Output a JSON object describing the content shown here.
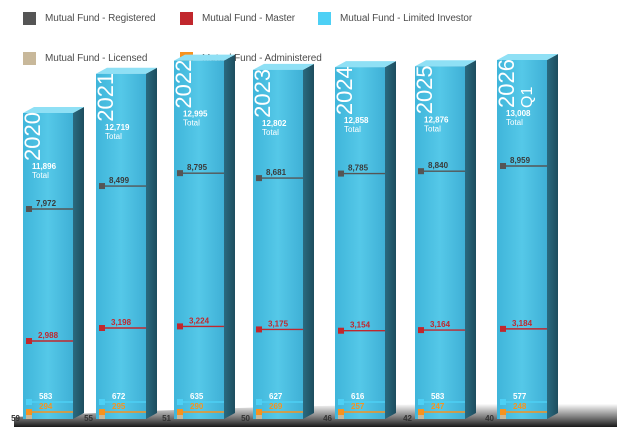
{
  "legend": {
    "registered": "Mutual Fund - Registered",
    "master": "Mutual Fund - Master",
    "limited": "Mutual Fund - Limited Investor",
    "licensed": "Mutual Fund - Licensed",
    "administered": "Mutual Fund - Administered"
  },
  "colors": {
    "registered": "#555555",
    "master": "#c1272d",
    "limited": "#4dd0f5",
    "licensed": "#c8b89a",
    "administered": "#f7931e",
    "bar_front": "#4cc1e3",
    "bar_side": "#2c6f86",
    "bar_top": "#8fe0f5"
  },
  "chart_data": {
    "type": "bar",
    "categories": [
      "2020",
      "2021",
      "2022",
      "2023",
      "2024",
      "2025",
      "2026"
    ],
    "category_sublabels": [
      "",
      "",
      "",
      "",
      "",
      "",
      "Q1"
    ],
    "total_label": "Total",
    "totals": [
      "11,896",
      "12,719",
      "12,995",
      "12,802",
      "12,858",
      "12,876",
      "13,008"
    ],
    "total_values": [
      11896,
      12719,
      12995,
      12802,
      12858,
      12876,
      13008
    ],
    "series": [
      {
        "name": "Mutual Fund - Registered",
        "key": "registered",
        "values": [
          7972,
          8499,
          8795,
          8681,
          8785,
          8840,
          8959
        ],
        "labels": [
          "7,972",
          "8,499",
          "8,795",
          "8,681",
          "8,785",
          "8,840",
          "8,959"
        ]
      },
      {
        "name": "Mutual Fund - Master",
        "key": "master",
        "values": [
          2988,
          3198,
          3224,
          3175,
          3154,
          3164,
          3184
        ],
        "labels": [
          "2,988",
          "3,198",
          "3,224",
          "3,175",
          "3,154",
          "3,164",
          "3,184"
        ]
      },
      {
        "name": "Mutual Fund - Limited Investor",
        "key": "limited",
        "values": [
          583,
          672,
          635,
          627,
          616,
          583,
          577
        ],
        "labels": [
          "583",
          "672",
          "635",
          "627",
          "616",
          "583",
          "577"
        ]
      },
      {
        "name": "Mutual Fund - Administered",
        "key": "administered",
        "values": [
          294,
          295,
          290,
          269,
          257,
          247,
          248
        ],
        "labels": [
          "294",
          "295",
          "290",
          "269",
          "257",
          "247",
          "248"
        ]
      },
      {
        "name": "Mutual Fund - Licensed",
        "key": "licensed",
        "values": [
          59,
          55,
          51,
          50,
          46,
          42,
          40
        ],
        "labels": [
          "59",
          "55",
          "51",
          "50",
          "46",
          "42",
          "40"
        ]
      }
    ]
  }
}
